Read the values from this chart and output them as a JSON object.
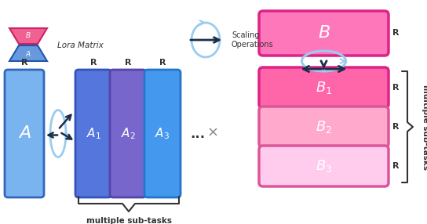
{
  "fig_width": 5.44,
  "fig_height": 2.86,
  "dpi": 100,
  "bg_color": "#ffffff",
  "legend_B_color": "#f06090",
  "legend_A_color": "#6699dd",
  "legend_B_border": "#cc2266",
  "legend_A_border": "#2255aa",
  "A_main_color": "#7ab4f0",
  "A_main_border": "#3366bb",
  "A1_color": "#5577dd",
  "A1_border": "#3355bb",
  "A2_color": "#7766cc",
  "A2_border": "#5544aa",
  "A3_color": "#4499ee",
  "A3_border": "#2277cc",
  "B_main_color": "#ff77bb",
  "B_main_border": "#dd2288",
  "B1_color": "#ff66aa",
  "B1_border": "#dd2288",
  "B2_color": "#ffaacc",
  "B2_border": "#dd5599",
  "B3_color": "#ffccee",
  "B3_border": "#dd5599",
  "arrow_color": "#99ccee",
  "dark_arrow_color": "#1a2e4a",
  "label_color": "#333333",
  "white_text": "#ffffff",
  "title_legend": "Lora Matrix",
  "scaling_label": "Scaling\nOperations",
  "multiple_subtasks_bottom": "multiple sub-tasks",
  "multiple_subtasks_right": "multiple sub-tasks"
}
